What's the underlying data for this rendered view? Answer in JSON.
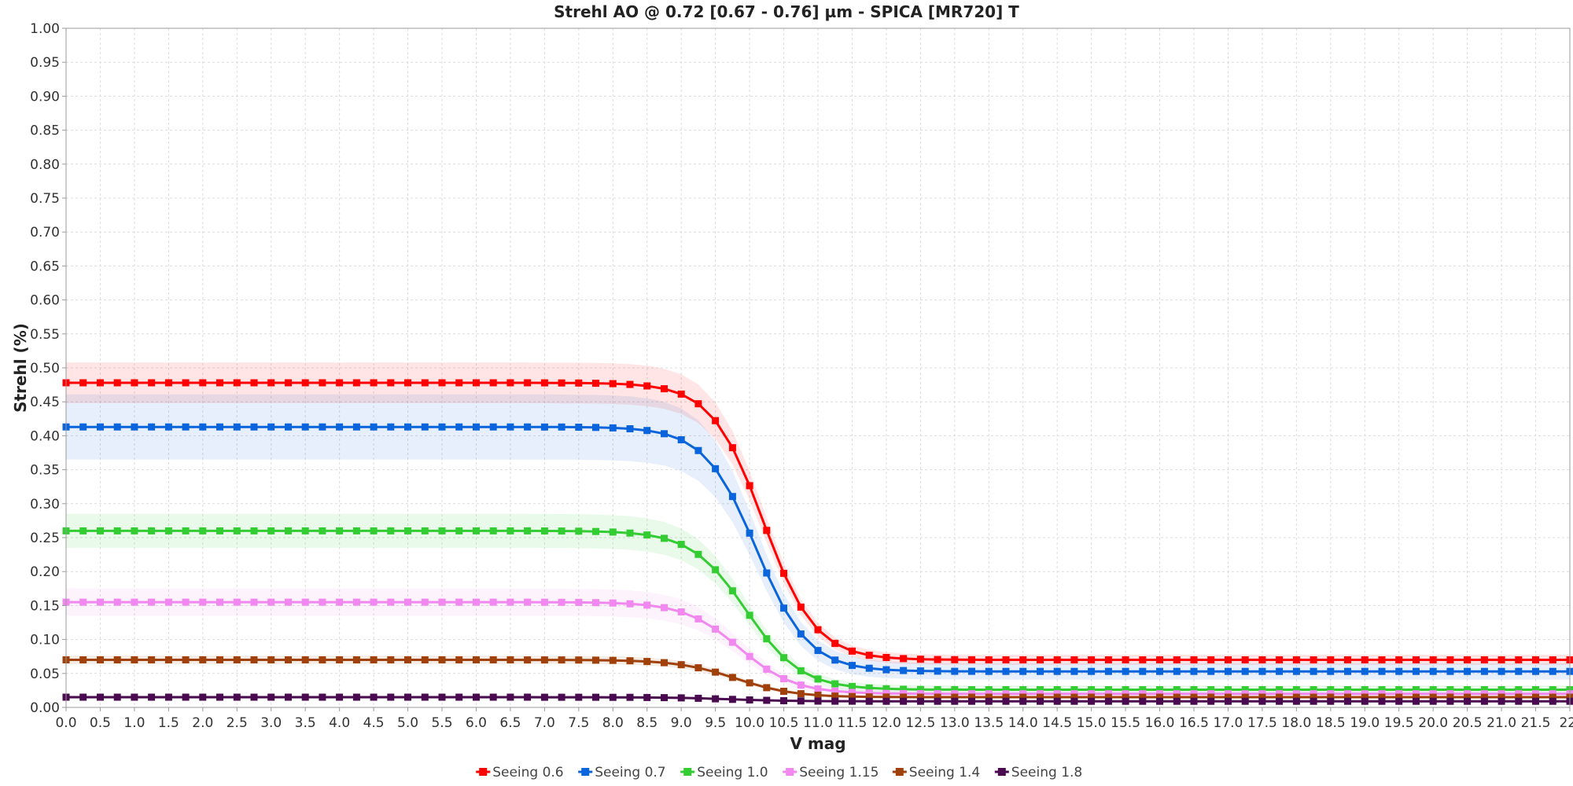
{
  "chart_data": {
    "type": "line",
    "title": "Strehl AO @ 0.72 [0.67 - 0.76] µm - SPICA [MR720] T",
    "xlabel": "V mag",
    "ylabel": "Strehl (%)",
    "xlim": [
      0,
      22
    ],
    "ylim": [
      0,
      1
    ],
    "x_ticks": [
      "0.0",
      "0.5",
      "1.0",
      "1.5",
      "2.0",
      "2.5",
      "3.0",
      "3.5",
      "4.0",
      "4.5",
      "5.0",
      "5.5",
      "6.0",
      "6.5",
      "7.0",
      "7.5",
      "8.0",
      "8.5",
      "9.0",
      "9.5",
      "10.0",
      "10.5",
      "11.0",
      "11.5",
      "12.0",
      "12.5",
      "13.0",
      "13.5",
      "14.0",
      "14.5",
      "15.0",
      "15.5",
      "16.0",
      "16.5",
      "17.0",
      "17.5",
      "18.0",
      "18.5",
      "19.0",
      "19.5",
      "20.0",
      "20.5",
      "21.0",
      "21.5",
      "22."
    ],
    "y_ticks": [
      "0.00",
      "0.05",
      "0.10",
      "0.15",
      "0.20",
      "0.25",
      "0.30",
      "0.35",
      "0.40",
      "0.45",
      "0.50",
      "0.55",
      "0.60",
      "0.65",
      "0.70",
      "0.75",
      "0.80",
      "0.85",
      "0.90",
      "0.95",
      "1.00"
    ],
    "grid": true,
    "legend_position": "bottom",
    "x_step": 0.25,
    "series": [
      {
        "name": "Seeing 0.6",
        "color": "#ff0000",
        "plateau": 0.478,
        "floor": 0.07,
        "mid": 10.2,
        "width": 0.38,
        "band": 0.03
      },
      {
        "name": "Seeing 0.7",
        "color": "#0a64dc",
        "plateau": 0.413,
        "floor": 0.053,
        "mid": 10.1,
        "width": 0.38,
        "band": 0.048
      },
      {
        "name": "Seeing 1.0",
        "color": "#33cc33",
        "plateau": 0.26,
        "floor": 0.026,
        "mid": 9.95,
        "width": 0.4,
        "band": 0.025
      },
      {
        "name": "Seeing 1.15",
        "color": "#f088f0",
        "plateau": 0.155,
        "floor": 0.02,
        "mid": 9.85,
        "width": 0.4,
        "band": 0.02
      },
      {
        "name": "Seeing 1.4",
        "color": "#a0400a",
        "plateau": 0.07,
        "floor": 0.015,
        "mid": 9.8,
        "width": 0.42,
        "band": 0.006
      },
      {
        "name": "Seeing 1.8",
        "color": "#4a0a50",
        "plateau": 0.015,
        "floor": 0.009,
        "mid": 9.7,
        "width": 0.45,
        "band": 0.002
      }
    ]
  }
}
